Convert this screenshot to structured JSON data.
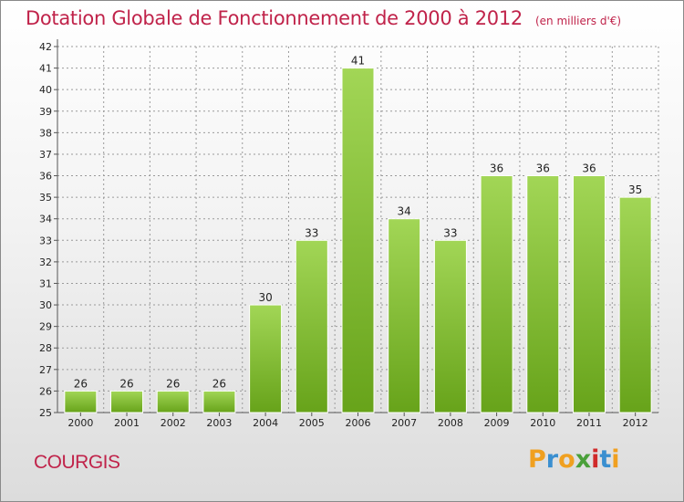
{
  "title": "Dotation Globale de Fonctionnement de 2000 à 2012",
  "unit_note": "(en milliers d'€)",
  "commune": "COURGIS",
  "logo": {
    "text": "Proxiti",
    "letters": [
      "P",
      "r",
      "o",
      "x",
      "i",
      "t",
      "i"
    ],
    "colors": [
      "#f0a020",
      "#3a8fd0",
      "#f0a020",
      "#4aa03a",
      "#d02a2a",
      "#3a8fd0",
      "#f0a020"
    ]
  },
  "colors": {
    "bar_top": "#a2d656",
    "bar_bottom": "#67a31a",
    "title": "#c0234a",
    "grid": "#9a9a9a"
  },
  "chart_data": {
    "type": "bar",
    "categories": [
      "2000",
      "2001",
      "2002",
      "2003",
      "2004",
      "2005",
      "2006",
      "2007",
      "2008",
      "2009",
      "2010",
      "2011",
      "2012"
    ],
    "values": [
      26,
      26,
      26,
      26,
      30,
      33,
      41,
      34,
      33,
      36,
      36,
      36,
      35
    ],
    "ylim": [
      25,
      42
    ],
    "yticks": [
      25,
      26,
      27,
      28,
      29,
      30,
      31,
      32,
      33,
      34,
      35,
      36,
      37,
      38,
      39,
      40,
      41,
      42
    ],
    "grid": true,
    "data_labels": true
  }
}
